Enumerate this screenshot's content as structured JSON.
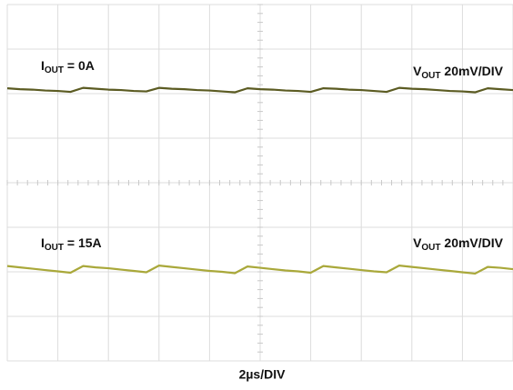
{
  "chart_data": {
    "type": "line",
    "xlim": [
      0,
      10
    ],
    "ylim": [
      -4,
      4
    ],
    "xticks": [
      0,
      1,
      2,
      3,
      4,
      5,
      6,
      7,
      8,
      9,
      10
    ],
    "yticks": [
      -4,
      -3,
      -2,
      -1,
      0,
      1,
      2,
      3,
      4
    ],
    "grid": true,
    "x": [
      0,
      0.25,
      0.5,
      0.75,
      1,
      1.25,
      1.5,
      1.75,
      2,
      2.25,
      2.5,
      2.75,
      3,
      3.25,
      3.5,
      3.75,
      4,
      4.25,
      4.5,
      4.75,
      5,
      5.25,
      5.5,
      5.75,
      6,
      6.25,
      6.5,
      6.75,
      7,
      7.25,
      7.5,
      7.75,
      8,
      8.25,
      8.5,
      8.75,
      9,
      9.25,
      9.5,
      9.75,
      10
    ],
    "series": [
      {
        "color": "#5b5b22",
        "values": [
          2.12,
          2.1,
          2.09,
          2.07,
          2.06,
          2.04,
          2.13,
          2.11,
          2.09,
          2.08,
          2.06,
          2.05,
          2.13,
          2.11,
          2.1,
          2.08,
          2.07,
          2.05,
          2.03,
          2.12,
          2.1,
          2.09,
          2.07,
          2.06,
          2.04,
          2.12,
          2.11,
          2.09,
          2.08,
          2.06,
          2.04,
          2.13,
          2.11,
          2.1,
          2.08,
          2.06,
          2.05,
          2.03,
          2.12,
          2.1,
          2.08
        ]
      },
      {
        "color": "#a9a83a",
        "values": [
          -1.87,
          -1.9,
          -1.93,
          -1.96,
          -1.99,
          -2.02,
          -1.87,
          -1.9,
          -1.92,
          -1.95,
          -1.98,
          -2.01,
          -1.86,
          -1.89,
          -1.92,
          -1.95,
          -1.98,
          -2.0,
          -2.03,
          -1.88,
          -1.91,
          -1.94,
          -1.97,
          -1.99,
          -2.02,
          -1.87,
          -1.9,
          -1.93,
          -1.96,
          -1.99,
          -2.01,
          -1.86,
          -1.89,
          -1.92,
          -1.95,
          -1.98,
          -2.01,
          -2.04,
          -1.89,
          -1.91,
          -1.94
        ]
      }
    ],
    "annotations": [
      {
        "main": "I",
        "sub": "OUT",
        "text": " = 0A"
      },
      {
        "main": "V",
        "sub": "OUT",
        "text": " 20mV/DIV"
      },
      {
        "main": "I",
        "sub": "OUT",
        "text": " = 15A"
      },
      {
        "main": "V",
        "sub": "OUT",
        "text": " 20mV/DIV"
      }
    ],
    "xlabel": "2µs/DIV"
  }
}
